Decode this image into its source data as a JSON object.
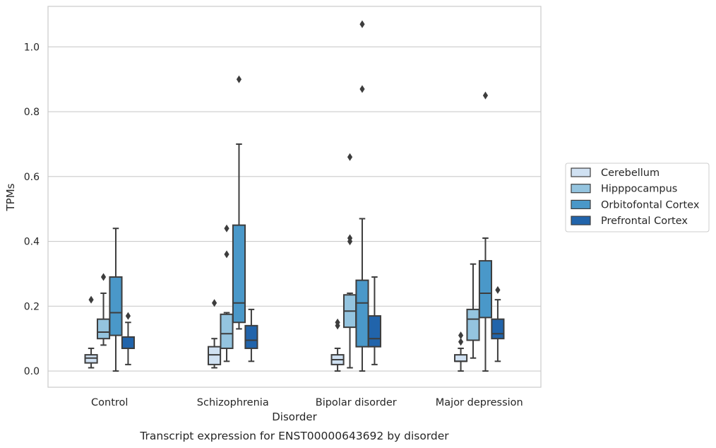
{
  "chart_data": {
    "type": "boxplot",
    "title": "Transcript expression for ENST00000643692 by disorder",
    "xlabel": "Disorder",
    "ylabel": "TPMs",
    "ylim": [
      -0.05,
      1.125
    ],
    "yticks": [
      0.0,
      0.2,
      0.4,
      0.6,
      0.8,
      1.0
    ],
    "ytick_labels": [
      "0.0",
      "0.2",
      "0.4",
      "0.6",
      "0.8",
      "1.0"
    ],
    "grid": "horizontal",
    "legend_position": "outside-right",
    "categories": [
      "Control",
      "Schizophrenia",
      "Bipolar disorder",
      "Major depression"
    ],
    "series": [
      {
        "name": "Cerebellum",
        "color": "#d0e1f2",
        "boxes": [
          {
            "whislo": 0.01,
            "q1": 0.025,
            "med": 0.04,
            "q3": 0.05,
            "whishi": 0.07,
            "fliers": [
              0.22
            ]
          },
          {
            "whislo": 0.01,
            "q1": 0.02,
            "med": 0.05,
            "q3": 0.075,
            "whishi": 0.1,
            "fliers": [
              0.21
            ]
          },
          {
            "whislo": 0.0,
            "q1": 0.02,
            "med": 0.035,
            "q3": 0.05,
            "whishi": 0.07,
            "fliers": [
              0.14,
              0.15
            ]
          },
          {
            "whislo": 0.0,
            "q1": 0.03,
            "med": 0.03,
            "q3": 0.05,
            "whishi": 0.07,
            "fliers": [
              0.09,
              0.11
            ]
          }
        ]
      },
      {
        "name": "Hipppocampus",
        "color": "#94c4df",
        "boxes": [
          {
            "whislo": 0.08,
            "q1": 0.1,
            "med": 0.12,
            "q3": 0.16,
            "whishi": 0.24,
            "fliers": [
              0.29
            ]
          },
          {
            "whislo": 0.03,
            "q1": 0.07,
            "med": 0.115,
            "q3": 0.175,
            "whishi": 0.18,
            "fliers": [
              0.36,
              0.44
            ]
          },
          {
            "whislo": 0.01,
            "q1": 0.135,
            "med": 0.185,
            "q3": 0.235,
            "whishi": 0.24,
            "fliers": [
              0.4,
              0.41,
              0.66
            ]
          },
          {
            "whislo": 0.04,
            "q1": 0.095,
            "med": 0.16,
            "q3": 0.19,
            "whishi": 0.33,
            "fliers": []
          }
        ]
      },
      {
        "name": "Orbitofontal Cortex",
        "color": "#4a98c9",
        "boxes": [
          {
            "whislo": 0.0,
            "q1": 0.11,
            "med": 0.18,
            "q3": 0.29,
            "whishi": 0.44,
            "fliers": []
          },
          {
            "whislo": 0.13,
            "q1": 0.15,
            "med": 0.21,
            "q3": 0.45,
            "whishi": 0.7,
            "fliers": [
              0.9
            ]
          },
          {
            "whislo": 0.0,
            "q1": 0.075,
            "med": 0.21,
            "q3": 0.28,
            "whishi": 0.47,
            "fliers": [
              0.87,
              1.07
            ]
          },
          {
            "whislo": 0.0,
            "q1": 0.165,
            "med": 0.24,
            "q3": 0.34,
            "whishi": 0.41,
            "fliers": [
              0.85
            ]
          }
        ]
      },
      {
        "name": "Prefrontal Cortex",
        "color": "#2164ab",
        "boxes": [
          {
            "whislo": 0.02,
            "q1": 0.07,
            "med": 0.07,
            "q3": 0.105,
            "whishi": 0.15,
            "fliers": [
              0.17
            ]
          },
          {
            "whislo": 0.03,
            "q1": 0.07,
            "med": 0.095,
            "q3": 0.14,
            "whishi": 0.19,
            "fliers": []
          },
          {
            "whislo": 0.02,
            "q1": 0.075,
            "med": 0.1,
            "q3": 0.17,
            "whishi": 0.29,
            "fliers": []
          },
          {
            "whislo": 0.03,
            "q1": 0.1,
            "med": 0.115,
            "q3": 0.16,
            "whishi": 0.22,
            "fliers": [
              0.25
            ]
          }
        ]
      }
    ]
  }
}
